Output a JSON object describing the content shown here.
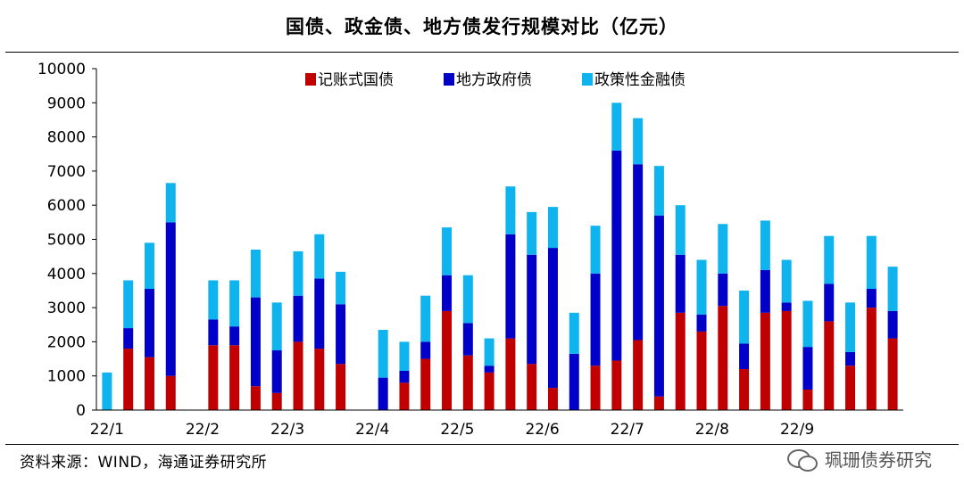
{
  "header": {
    "title": "国债、政金债、地方债发行规模对比（亿元）"
  },
  "footer": {
    "source": "资料来源：WIND，海通证券研究所"
  },
  "watermark": {
    "text": "珮珊债券研究"
  },
  "colors": {
    "red": "#c00000",
    "blue": "#0000c8",
    "cyan": "#0fb4ef"
  },
  "chart_data": {
    "type": "bar",
    "stacked": true,
    "title": "国债、政金债、地方债发行规模对比（亿元）",
    "ylim": [
      0,
      10000
    ],
    "yticks": [
      0,
      1000,
      2000,
      3000,
      4000,
      5000,
      6000,
      7000,
      8000,
      9000,
      10000
    ],
    "legend_position": "top",
    "x_tick_labels": [
      {
        "label": "22/1",
        "at": 0
      },
      {
        "label": "22/2",
        "at": 4.5
      },
      {
        "label": "22/3",
        "at": 8.5
      },
      {
        "label": "22/4",
        "at": 12.5
      },
      {
        "label": "22/5",
        "at": 16.5
      },
      {
        "label": "22/6",
        "at": 20.5
      },
      {
        "label": "22/7",
        "at": 24.5
      },
      {
        "label": "22/8",
        "at": 28.5
      },
      {
        "label": "22/9",
        "at": 32.5
      }
    ],
    "series": [
      {
        "name": "记账式国债",
        "color": "#c00000",
        "values": [
          0,
          1800,
          1550,
          1000,
          0,
          1900,
          1900,
          700,
          500,
          2000,
          1800,
          1350,
          0,
          0,
          800,
          1500,
          2900,
          1600,
          1100,
          2100,
          1350,
          650,
          0,
          1300,
          1450,
          2050,
          400,
          2850,
          2300,
          3050,
          1200,
          2850,
          2900,
          600,
          2600,
          1300,
          3000,
          2100
        ]
      },
      {
        "name": "地方政府债",
        "color": "#0000c8",
        "values": [
          0,
          600,
          2000,
          4500,
          0,
          750,
          550,
          2600,
          1250,
          1350,
          2050,
          1750,
          0,
          950,
          350,
          500,
          1050,
          950,
          200,
          3050,
          3200,
          4100,
          1650,
          2700,
          6150,
          5150,
          5300,
          1700,
          500,
          950,
          750,
          1250,
          250,
          1250,
          1100,
          400,
          550,
          800
        ]
      },
      {
        "name": "政策性金融债",
        "color": "#0fb4ef",
        "values": [
          1100,
          1400,
          1350,
          1150,
          0,
          1150,
          1350,
          1400,
          1400,
          1300,
          1300,
          950,
          0,
          1400,
          850,
          1350,
          1400,
          1400,
          800,
          1400,
          1250,
          1200,
          1200,
          1400,
          1400,
          1350,
          1450,
          1450,
          1600,
          1450,
          1550,
          1450,
          1250,
          1350,
          1400,
          1450,
          1550,
          1300
        ]
      }
    ]
  }
}
